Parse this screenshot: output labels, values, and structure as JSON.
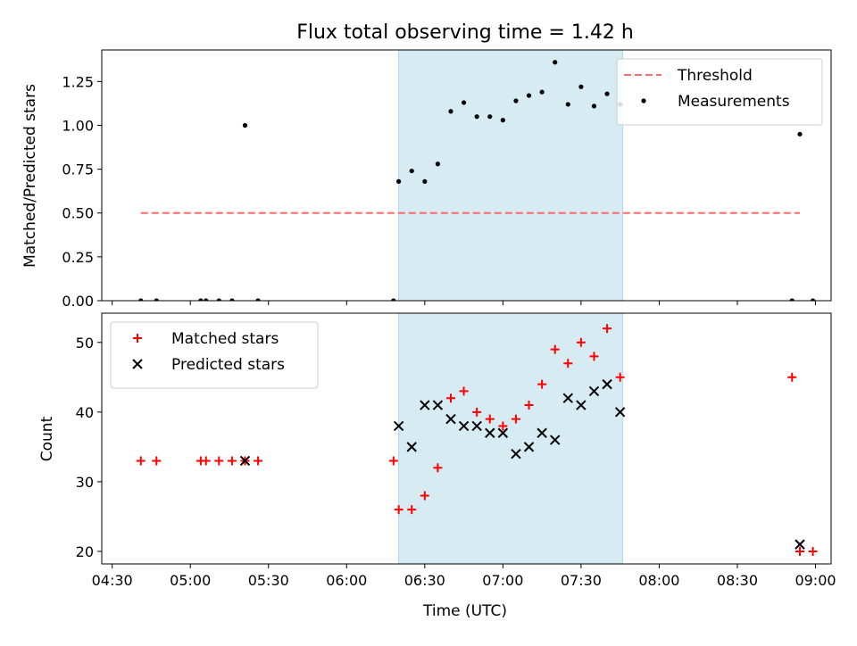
{
  "chart_data": [
    {
      "type": "scatter",
      "title": "Flux total observing time = 1.42 h",
      "xlabel": "",
      "ylabel": "Matched/Predicted stars",
      "xlim": [
        "04:26",
        "09:06"
      ],
      "ylim": [
        0,
        1.43
      ],
      "yticks": [
        0.0,
        0.25,
        0.5,
        0.75,
        1.0,
        1.25
      ],
      "ytick_labels": [
        "0.00",
        "0.25",
        "0.50",
        "0.75",
        "1.00",
        "1.25"
      ],
      "xticks": [
        "04:30",
        "05:00",
        "05:30",
        "06:00",
        "06:30",
        "07:00",
        "07:30",
        "08:00",
        "08:30",
        "09:00"
      ],
      "shaded_span": {
        "from": "06:20",
        "to": "07:46",
        "color": "#add8e6"
      },
      "legend_position": "upper right",
      "threshold": {
        "name": "Threshold",
        "value": 0.5,
        "x_from": "04:41",
        "x_to": "08:54",
        "color": "#ff6b6b"
      },
      "series": [
        {
          "name": "Measurements",
          "color": "#000000",
          "points": [
            [
              "04:41",
              0.0
            ],
            [
              "04:47",
              0.0
            ],
            [
              "05:04",
              0.0
            ],
            [
              "05:06",
              0.0
            ],
            [
              "05:11",
              0.0
            ],
            [
              "05:16",
              0.0
            ],
            [
              "05:21",
              1.0
            ],
            [
              "05:26",
              0.0
            ],
            [
              "06:18",
              0.0
            ],
            [
              "06:20",
              0.68
            ],
            [
              "06:25",
              0.74
            ],
            [
              "06:30",
              0.68
            ],
            [
              "06:35",
              0.78
            ],
            [
              "06:40",
              1.08
            ],
            [
              "06:45",
              1.13
            ],
            [
              "06:50",
              1.05
            ],
            [
              "06:55",
              1.05
            ],
            [
              "07:00",
              1.03
            ],
            [
              "07:05",
              1.14
            ],
            [
              "07:10",
              1.17
            ],
            [
              "07:15",
              1.19
            ],
            [
              "07:20",
              1.36
            ],
            [
              "07:25",
              1.12
            ],
            [
              "07:30",
              1.22
            ],
            [
              "07:35",
              1.11
            ],
            [
              "07:40",
              1.18
            ],
            [
              "07:45",
              1.12
            ],
            [
              "08:51",
              0.0
            ],
            [
              "08:54",
              0.95
            ],
            [
              "08:59",
              0.0
            ]
          ]
        }
      ]
    },
    {
      "type": "scatter",
      "title": "",
      "xlabel": "Time (UTC)",
      "ylabel": "Count",
      "xlim": [
        "04:26",
        "09:06"
      ],
      "ylim": [
        18.2,
        54.2
      ],
      "yticks": [
        20,
        30,
        40,
        50
      ],
      "ytick_labels": [
        "20",
        "30",
        "40",
        "50"
      ],
      "xticks": [
        "04:30",
        "05:00",
        "05:30",
        "06:00",
        "06:30",
        "07:00",
        "07:30",
        "08:00",
        "08:30",
        "09:00"
      ],
      "xtick_labels": [
        "04:30",
        "05:00",
        "05:30",
        "06:00",
        "06:30",
        "07:00",
        "07:30",
        "08:00",
        "08:30",
        "09:00"
      ],
      "shaded_span": {
        "from": "06:20",
        "to": "07:46",
        "color": "#add8e6"
      },
      "legend_position": "upper left",
      "series": [
        {
          "name": "Matched stars",
          "marker": "plus",
          "color": "#ff0000",
          "points": [
            [
              "04:41",
              33
            ],
            [
              "04:47",
              33
            ],
            [
              "05:04",
              33
            ],
            [
              "05:06",
              33
            ],
            [
              "05:11",
              33
            ],
            [
              "05:16",
              33
            ],
            [
              "05:21",
              33
            ],
            [
              "05:26",
              33
            ],
            [
              "06:18",
              33
            ],
            [
              "06:20",
              26
            ],
            [
              "06:25",
              26
            ],
            [
              "06:30",
              28
            ],
            [
              "06:35",
              32
            ],
            [
              "06:40",
              42
            ],
            [
              "06:45",
              43
            ],
            [
              "06:50",
              40
            ],
            [
              "06:55",
              39
            ],
            [
              "07:00",
              38
            ],
            [
              "07:05",
              39
            ],
            [
              "07:10",
              41
            ],
            [
              "07:15",
              44
            ],
            [
              "07:20",
              49
            ],
            [
              "07:25",
              47
            ],
            [
              "07:30",
              50
            ],
            [
              "07:35",
              48
            ],
            [
              "07:40",
              52
            ],
            [
              "07:45",
              45
            ],
            [
              "08:51",
              45
            ],
            [
              "08:54",
              20
            ],
            [
              "08:59",
              20
            ]
          ]
        },
        {
          "name": "Predicted stars",
          "marker": "x",
          "color": "#000000",
          "points": [
            [
              "05:21",
              33
            ],
            [
              "06:20",
              38
            ],
            [
              "06:25",
              35
            ],
            [
              "06:30",
              41
            ],
            [
              "06:35",
              41
            ],
            [
              "06:40",
              39
            ],
            [
              "06:45",
              38
            ],
            [
              "06:50",
              38
            ],
            [
              "06:55",
              37
            ],
            [
              "07:00",
              37
            ],
            [
              "07:05",
              34
            ],
            [
              "07:10",
              35
            ],
            [
              "07:15",
              37
            ],
            [
              "07:20",
              36
            ],
            [
              "07:25",
              42
            ],
            [
              "07:30",
              41
            ],
            [
              "07:35",
              43
            ],
            [
              "07:40",
              44
            ],
            [
              "07:45",
              40
            ],
            [
              "08:54",
              21
            ]
          ]
        }
      ]
    }
  ]
}
